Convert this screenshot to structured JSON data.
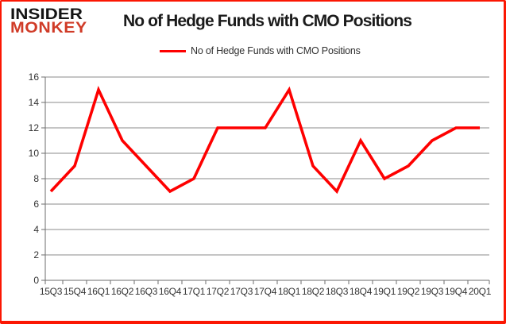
{
  "logo": {
    "line1": "INSIDER",
    "line2": "MONKEY"
  },
  "header": {
    "title": "No of Hedge Funds with CMO Positions"
  },
  "legend": {
    "label": "No of Hedge Funds with CMO Positions"
  },
  "chart_data": {
    "type": "line",
    "title": "No of Hedge Funds with CMO Positions",
    "categories": [
      "15Q3",
      "15Q4",
      "16Q1",
      "16Q2",
      "16Q3",
      "16Q4",
      "17Q1",
      "17Q2",
      "17Q3",
      "17Q4",
      "18Q1",
      "18Q2",
      "18Q3",
      "18Q4",
      "19Q1",
      "19Q2",
      "19Q3",
      "19Q4",
      "20Q1"
    ],
    "series": [
      {
        "name": "No of Hedge Funds with CMO Positions",
        "color": "#fe0000",
        "values": [
          7,
          9,
          15,
          11,
          9,
          7,
          8,
          12,
          12,
          12,
          15,
          9,
          7,
          11,
          8,
          9,
          11,
          12,
          12
        ]
      }
    ],
    "ylim": [
      0,
      16
    ],
    "yticks": [
      0,
      2,
      4,
      6,
      8,
      10,
      12,
      14,
      16
    ],
    "xlabel": "",
    "ylabel": "",
    "grid": "horizontal",
    "legend_position": "top",
    "colors": {
      "line": "#fe0000",
      "gridline": "#8b8b8b",
      "axis": "#6e6e6e",
      "tick_label": "#333333",
      "title_text": "#1b1b1b",
      "logo_black": "#141414",
      "logo_red": "#d03b27",
      "frame_border": "#fb1703"
    }
  }
}
